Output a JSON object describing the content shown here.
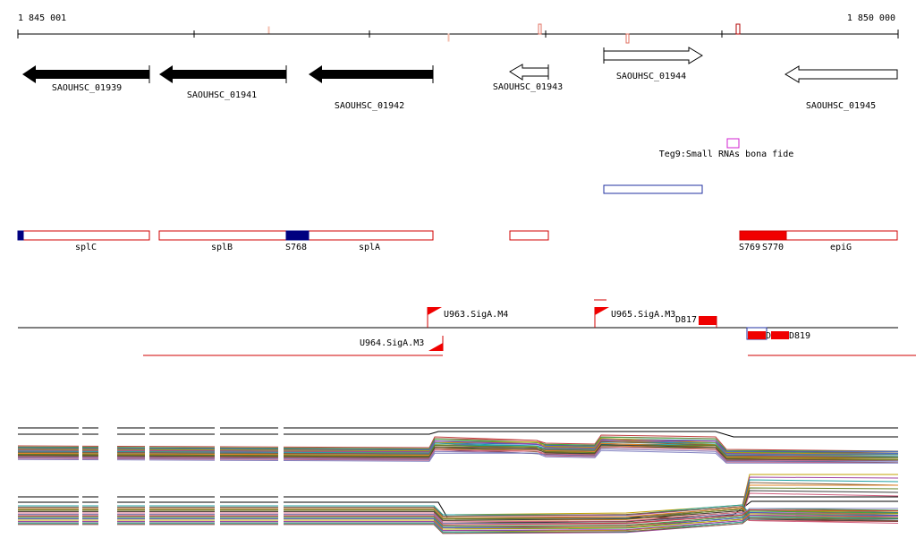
{
  "ruler": {
    "start": "1 845 001",
    "end": "1 850 000"
  },
  "genes": [
    {
      "label": "SAOUHSC_01939"
    },
    {
      "label": "SAOUHSC_01941"
    },
    {
      "label": "SAOUHSC_01942"
    },
    {
      "label": "SAOUHSC_01943"
    },
    {
      "label": "SAOUHSC_01944"
    },
    {
      "label": "SAOUHSC_01945"
    }
  ],
  "srna": {
    "label": "Teg9:Small RNAs bona fide"
  },
  "features": [
    {
      "label": "splC"
    },
    {
      "label": "splB"
    },
    {
      "label": "S768"
    },
    {
      "label": "splA"
    },
    {
      "label": "S769"
    },
    {
      "label": "S770"
    },
    {
      "label": "epiG"
    }
  ],
  "promoters": [
    {
      "label": "U963.SigA.M4"
    },
    {
      "label": "U965.SigA.M3"
    },
    {
      "label": "D817"
    },
    {
      "label": "U964.SigA.M3"
    },
    {
      "label": "D"
    },
    {
      "label": "D819"
    }
  ]
}
